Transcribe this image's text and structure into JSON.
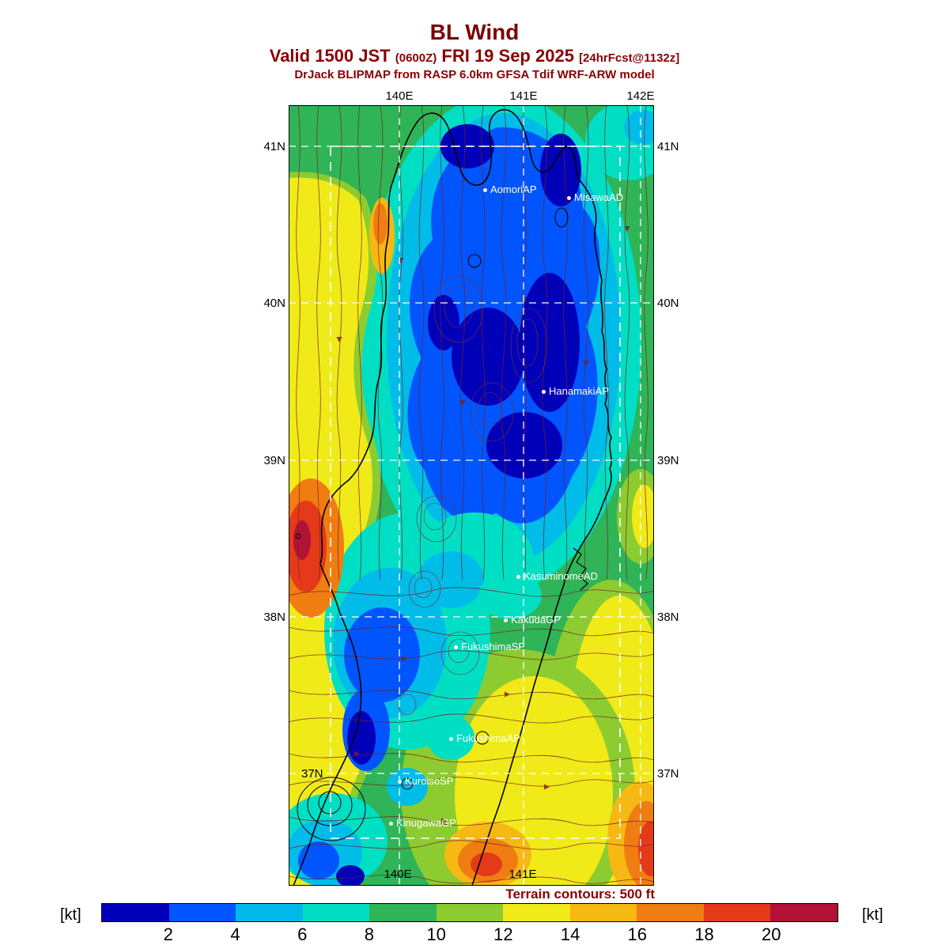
{
  "header": {
    "title": "BL Wind",
    "valid": {
      "prefix": "Valid 1500 JST",
      "zulu": "(0600Z)",
      "date": "FRI 19 Sep 2025",
      "fcst": "[24hrFcst@1132z]"
    },
    "model_line": "DrJack BLIPMAP from RASP 6.0km GFSA Tdif WRF-ARW model"
  },
  "map": {
    "lon_labels_top": [
      "140E",
      "141E",
      "142E"
    ],
    "lon_labels_bottom": [
      "140E",
      "141E"
    ],
    "lat_labels_left": [
      "41N",
      "40N",
      "39N",
      "38N",
      "37N"
    ],
    "lat_labels_right": [
      "41N",
      "40N",
      "39N",
      "38N",
      "37N"
    ],
    "stations": [
      "AomoriAP",
      "MisawaAD",
      "HanamakiAP",
      "KasuminomeAD",
      "KakudaGP",
      "FukushimaSP",
      "FukushimaAP",
      "KuroisoSP",
      "KinugawaGP"
    ],
    "terrain_note": "Terrain contours: 500 ft"
  },
  "colorbar": {
    "unit_left": "[kt]",
    "unit_right": "[kt]",
    "ticks": [
      "2",
      "4",
      "6",
      "8",
      "10",
      "12",
      "14",
      "16",
      "18",
      "20"
    ],
    "colors": [
      "#0000b9",
      "#0055ff",
      "#00b9e8",
      "#00dfc4",
      "#2fb457",
      "#8ccc30",
      "#f0ea18",
      "#f6b813",
      "#f07d11",
      "#e43a1a",
      "#b11236"
    ]
  },
  "chart_data": {
    "type": "filled-contour-map",
    "title": "BL Wind",
    "units": "kt",
    "scale_ticks": [
      2,
      4,
      6,
      8,
      10,
      12,
      14,
      16,
      18,
      20
    ],
    "lon_labels": [
      "140E",
      "141E",
      "142E"
    ],
    "lat_labels": [
      "37N",
      "38N",
      "39N",
      "40N",
      "41N"
    ],
    "stations": [
      "AomoriAP",
      "MisawaAD",
      "HanamakiAP",
      "KasuminomeAD",
      "KakudaGP",
      "FukushimaSP",
      "FukushimaAP",
      "KuroisoSP",
      "KinugawaGP"
    ],
    "legend_note": "Terrain contours: 500 ft"
  }
}
